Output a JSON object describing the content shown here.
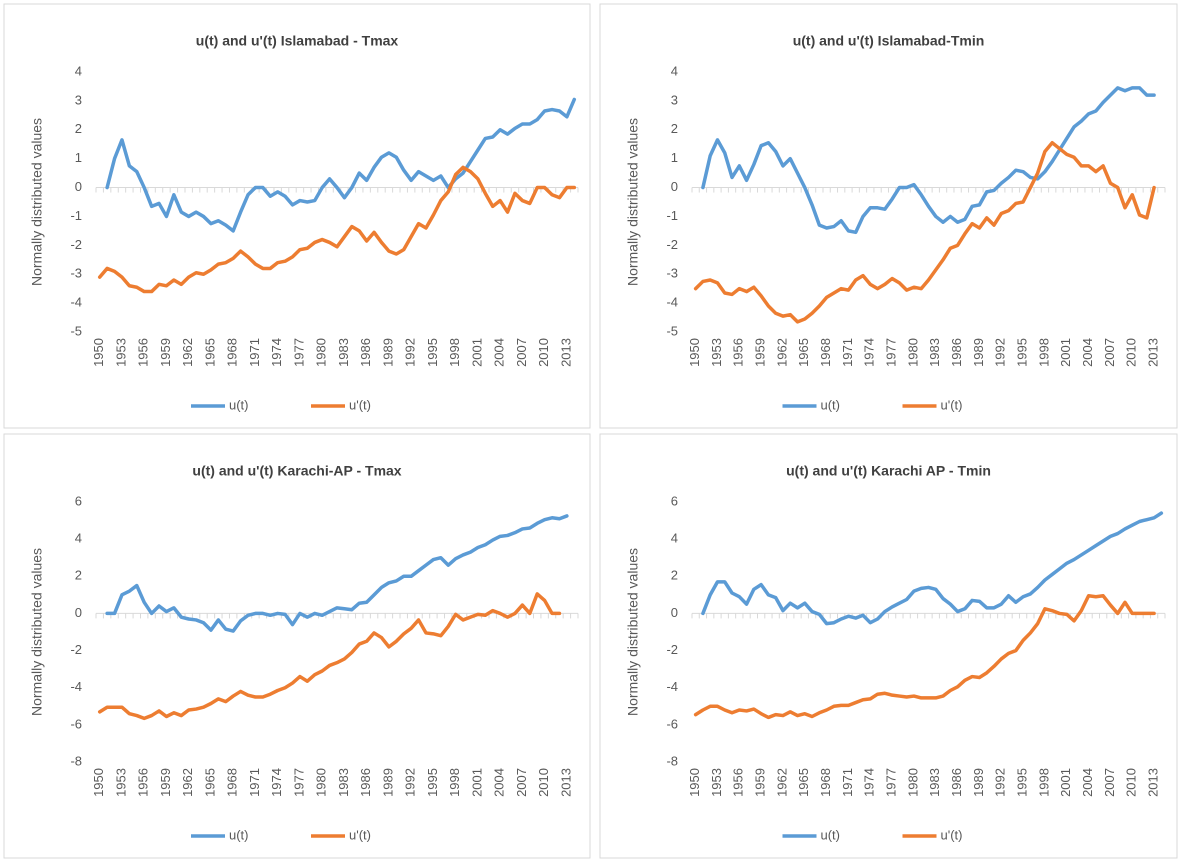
{
  "chart_data": [
    {
      "type": "line",
      "title": "u(t) and u'(t) Islamabad - Tmax",
      "y_label": "Normally distributed values",
      "categories": [
        "1950",
        null,
        null,
        "1953",
        null,
        null,
        "1956",
        null,
        null,
        "1959",
        null,
        null,
        "1962",
        null,
        null,
        "1965",
        null,
        null,
        "1968",
        null,
        null,
        "1971",
        null,
        null,
        "1974",
        null,
        null,
        "1977",
        null,
        null,
        "1980",
        null,
        null,
        "1983",
        null,
        null,
        "1986",
        null,
        null,
        "1989",
        null,
        null,
        "1992",
        null,
        null,
        "1995",
        null,
        null,
        "1998",
        null,
        null,
        "2001",
        null,
        null,
        "2004",
        null,
        null,
        "2007",
        null,
        null,
        "2010",
        null,
        null,
        "2013",
        null
      ],
      "series": [
        {
          "name": "u(t)",
          "color": "#5b9bd5",
          "values": [
            null,
            0,
            1.0,
            1.65,
            0.75,
            0.55,
            0,
            -0.65,
            -0.55,
            -1.0,
            -0.25,
            -0.85,
            -1.0,
            -0.85,
            -1.0,
            -1.25,
            -1.15,
            -1.3,
            -1.5,
            -0.85,
            -0.25,
            0,
            0,
            -0.3,
            -0.15,
            -0.3,
            -0.6,
            -0.45,
            -0.5,
            -0.45,
            0,
            0.3,
            0,
            -0.35,
            0,
            0.5,
            0.25,
            0.7,
            1.05,
            1.2,
            1.05,
            0.6,
            0.25,
            0.55,
            0.4,
            0.25,
            0.4,
            0,
            0.3,
            0.5,
            0.9,
            1.3,
            1.7,
            1.75,
            2.0,
            1.85,
            2.05,
            2.2,
            2.2,
            2.35,
            2.65,
            2.7,
            2.65,
            2.45,
            3.05
          ]
        },
        {
          "name": "u'(t)",
          "color": "#ed7d31",
          "values": [
            -3.1,
            -2.8,
            -2.9,
            -3.1,
            -3.4,
            -3.45,
            -3.6,
            -3.6,
            -3.35,
            -3.4,
            -3.2,
            -3.35,
            -3.1,
            -2.95,
            -3.0,
            -2.85,
            -2.65,
            -2.6,
            -2.45,
            -2.2,
            -2.4,
            -2.65,
            -2.8,
            -2.8,
            -2.6,
            -2.55,
            -2.4,
            -2.15,
            -2.1,
            -1.9,
            -1.8,
            -1.9,
            -2.05,
            -1.7,
            -1.35,
            -1.5,
            -1.85,
            -1.55,
            -1.9,
            -2.2,
            -2.3,
            -2.15,
            -1.7,
            -1.25,
            -1.4,
            -0.95,
            -0.45,
            -0.15,
            0.45,
            0.7,
            0.55,
            0.3,
            -0.2,
            -0.65,
            -0.45,
            -0.85,
            -0.2,
            -0.45,
            -0.55,
            0,
            0,
            -0.25,
            -0.35,
            0,
            0
          ]
        }
      ],
      "ylim": [
        -5,
        4
      ],
      "yticks": [
        -5,
        -4,
        -3,
        -2,
        -1,
        0,
        1,
        2,
        3,
        4
      ],
      "grid": false,
      "legend": "bottom"
    },
    {
      "type": "line",
      "title": "u(t) and u'(t) Islamabad-Tmin",
      "y_label": "Normally distributed values",
      "categories": [
        "1950",
        null,
        null,
        "1953",
        null,
        null,
        "1956",
        null,
        null,
        "1959",
        null,
        null,
        "1962",
        null,
        null,
        "1965",
        null,
        null,
        "1968",
        null,
        null,
        "1971",
        null,
        null,
        "1974",
        null,
        null,
        "1977",
        null,
        null,
        "1980",
        null,
        null,
        "1983",
        null,
        null,
        "1986",
        null,
        null,
        "1989",
        null,
        null,
        "1992",
        null,
        null,
        "1995",
        null,
        null,
        "1998",
        null,
        null,
        "2001",
        null,
        null,
        "2004",
        null,
        null,
        "2007",
        null,
        null,
        "2010",
        null,
        null,
        "2013",
        null
      ],
      "series": [
        {
          "name": "u(t)",
          "color": "#5b9bd5",
          "values": [
            null,
            0,
            1.1,
            1.65,
            1.2,
            0.35,
            0.75,
            0.25,
            0.8,
            1.45,
            1.55,
            1.25,
            0.75,
            1.0,
            0.5,
            0,
            -0.6,
            -1.3,
            -1.4,
            -1.35,
            -1.15,
            -1.5,
            -1.55,
            -1.0,
            -0.7,
            -0.7,
            -0.75,
            -0.4,
            0,
            0,
            0.1,
            -0.25,
            -0.65,
            -1.0,
            -1.2,
            -1.0,
            -1.2,
            -1.1,
            -0.65,
            -0.6,
            -0.15,
            -0.1,
            0.15,
            0.35,
            0.6,
            0.55,
            0.35,
            0.3,
            0.55,
            0.9,
            1.3,
            1.7,
            2.1,
            2.3,
            2.55,
            2.65,
            2.95,
            3.2,
            3.45,
            3.35,
            3.45,
            3.45,
            3.2,
            3.2,
            null
          ]
        },
        {
          "name": "u'(t)",
          "color": "#ed7d31",
          "values": [
            -3.5,
            -3.25,
            -3.2,
            -3.3,
            -3.65,
            -3.7,
            -3.5,
            -3.6,
            -3.45,
            -3.75,
            -4.1,
            -4.35,
            -4.45,
            -4.4,
            -4.65,
            -4.55,
            -4.35,
            -4.1,
            -3.8,
            -3.65,
            -3.5,
            -3.55,
            -3.2,
            -3.05,
            -3.35,
            -3.5,
            -3.35,
            -3.15,
            -3.3,
            -3.55,
            -3.45,
            -3.5,
            -3.2,
            -2.85,
            -2.5,
            -2.1,
            -2.0,
            -1.6,
            -1.25,
            -1.4,
            -1.05,
            -1.3,
            -0.9,
            -0.8,
            -0.55,
            -0.5,
            0,
            0.5,
            1.25,
            1.55,
            1.35,
            1.15,
            1.05,
            0.75,
            0.75,
            0.55,
            0.75,
            0.15,
            0,
            -0.7,
            -0.25,
            -0.95,
            -1.05,
            0,
            null
          ]
        }
      ],
      "ylim": [
        -5,
        4
      ],
      "yticks": [
        -5,
        -4,
        -3,
        -2,
        -1,
        0,
        1,
        2,
        3,
        4
      ],
      "grid": false,
      "legend": "bottom"
    },
    {
      "type": "line",
      "title": "u(t) and u'(t) Karachi-AP  - Tmax",
      "y_label": "Normally distributed values",
      "categories": [
        "1950",
        null,
        null,
        "1953",
        null,
        null,
        "1956",
        null,
        null,
        "1959",
        null,
        null,
        "1962",
        null,
        null,
        "1965",
        null,
        null,
        "1968",
        null,
        null,
        "1971",
        null,
        null,
        "1974",
        null,
        null,
        "1977",
        null,
        null,
        "1980",
        null,
        null,
        "1983",
        null,
        null,
        "1986",
        null,
        null,
        "1989",
        null,
        null,
        "1992",
        null,
        null,
        "1995",
        null,
        null,
        "1998",
        null,
        null,
        "2001",
        null,
        null,
        "2004",
        null,
        null,
        "2007",
        null,
        null,
        "2010",
        null,
        null,
        "2013",
        null
      ],
      "series": [
        {
          "name": "u(t)",
          "color": "#5b9bd5",
          "values": [
            null,
            0,
            0,
            1.0,
            1.2,
            1.5,
            0.6,
            0,
            0.4,
            0.1,
            0.3,
            -0.2,
            -0.3,
            -0.35,
            -0.5,
            -0.9,
            -0.35,
            -0.85,
            -0.95,
            -0.4,
            -0.1,
            0,
            0,
            -0.1,
            0,
            -0.05,
            -0.6,
            0,
            -0.2,
            0,
            -0.1,
            0.1,
            0.3,
            0.25,
            0.2,
            0.55,
            0.6,
            1.0,
            1.4,
            1.65,
            1.75,
            2.0,
            2.0,
            2.3,
            2.6,
            2.9,
            3.0,
            2.6,
            2.95,
            3.15,
            3.3,
            3.55,
            3.7,
            3.95,
            4.15,
            4.2,
            4.35,
            4.55,
            4.6,
            4.85,
            5.05,
            5.15,
            5.1,
            5.25,
            null
          ]
        },
        {
          "name": "u'(t)",
          "color": "#ed7d31",
          "values": [
            -5.3,
            -5.05,
            -5.05,
            -5.05,
            -5.4,
            -5.5,
            -5.65,
            -5.5,
            -5.25,
            -5.55,
            -5.35,
            -5.5,
            -5.2,
            -5.15,
            -5.05,
            -4.85,
            -4.6,
            -4.75,
            -4.45,
            -4.2,
            -4.4,
            -4.5,
            -4.5,
            -4.35,
            -4.15,
            -4.0,
            -3.75,
            -3.4,
            -3.65,
            -3.3,
            -3.1,
            -2.8,
            -2.65,
            -2.45,
            -2.1,
            -1.65,
            -1.5,
            -1.05,
            -1.3,
            -1.8,
            -1.5,
            -1.1,
            -0.8,
            -0.35,
            -1.05,
            -1.1,
            -1.2,
            -0.7,
            -0.05,
            -0.35,
            -0.2,
            -0.05,
            -0.1,
            0.15,
            0,
            -0.2,
            0,
            0.45,
            0,
            1.05,
            0.7,
            0,
            0,
            null,
            null
          ]
        }
      ],
      "ylim": [
        -8,
        6
      ],
      "yticks": [
        -8,
        -6,
        -4,
        -2,
        0,
        2,
        4,
        6
      ],
      "grid": false,
      "legend": "bottom"
    },
    {
      "type": "line",
      "title": "u(t) and u'(t) Karachi AP - Tmin",
      "y_label": "Normally distributed values",
      "categories": [
        "1950",
        null,
        null,
        "1953",
        null,
        null,
        "1956",
        null,
        null,
        "1959",
        null,
        null,
        "1962",
        null,
        null,
        "1965",
        null,
        null,
        "1968",
        null,
        null,
        "1971",
        null,
        null,
        "1974",
        null,
        null,
        "1977",
        null,
        null,
        "1980",
        null,
        null,
        "1983",
        null,
        null,
        "1986",
        null,
        null,
        "1989",
        null,
        null,
        "1992",
        null,
        null,
        "1995",
        null,
        null,
        "1998",
        null,
        null,
        "2001",
        null,
        null,
        "2004",
        null,
        null,
        "2007",
        null,
        null,
        "2010",
        null,
        null,
        "2013",
        null
      ],
      "series": [
        {
          "name": "u(t)",
          "color": "#5b9bd5",
          "values": [
            null,
            0,
            1.0,
            1.7,
            1.7,
            1.1,
            0.9,
            0.5,
            1.3,
            1.55,
            1.0,
            0.85,
            0.15,
            0.55,
            0.3,
            0.55,
            0.1,
            -0.05,
            -0.55,
            -0.5,
            -0.3,
            -0.15,
            -0.25,
            -0.1,
            -0.5,
            -0.3,
            0.1,
            0.35,
            0.55,
            0.75,
            1.2,
            1.35,
            1.4,
            1.3,
            0.8,
            0.5,
            0.1,
            0.25,
            0.7,
            0.65,
            0.3,
            0.3,
            0.5,
            0.95,
            0.6,
            0.9,
            1.05,
            1.4,
            1.8,
            2.1,
            2.4,
            2.7,
            2.9,
            3.15,
            3.4,
            3.65,
            3.9,
            4.15,
            4.3,
            4.55,
            4.75,
            4.95,
            5.05,
            5.15,
            5.4
          ]
        },
        {
          "name": "u'(t)",
          "color": "#ed7d31",
          "values": [
            -5.45,
            -5.2,
            -5.0,
            -5.0,
            -5.2,
            -5.35,
            -5.2,
            -5.25,
            -5.15,
            -5.4,
            -5.6,
            -5.45,
            -5.5,
            -5.3,
            -5.5,
            -5.4,
            -5.55,
            -5.35,
            -5.2,
            -5.0,
            -4.95,
            -4.95,
            -4.8,
            -4.65,
            -4.6,
            -4.35,
            -4.3,
            -4.4,
            -4.45,
            -4.5,
            -4.45,
            -4.55,
            -4.55,
            -4.55,
            -4.45,
            -4.15,
            -3.95,
            -3.6,
            -3.4,
            -3.45,
            -3.2,
            -2.85,
            -2.45,
            -2.15,
            -2.0,
            -1.45,
            -1.05,
            -0.55,
            0.25,
            0.15,
            0,
            -0.05,
            -0.4,
            0.15,
            0.95,
            0.9,
            0.95,
            0.45,
            0,
            0.6,
            0,
            0,
            0,
            0,
            null
          ]
        }
      ],
      "ylim": [
        -8,
        6
      ],
      "yticks": [
        -8,
        -6,
        -4,
        -2,
        0,
        2,
        4,
        6
      ],
      "grid": false,
      "legend": "bottom"
    }
  ]
}
